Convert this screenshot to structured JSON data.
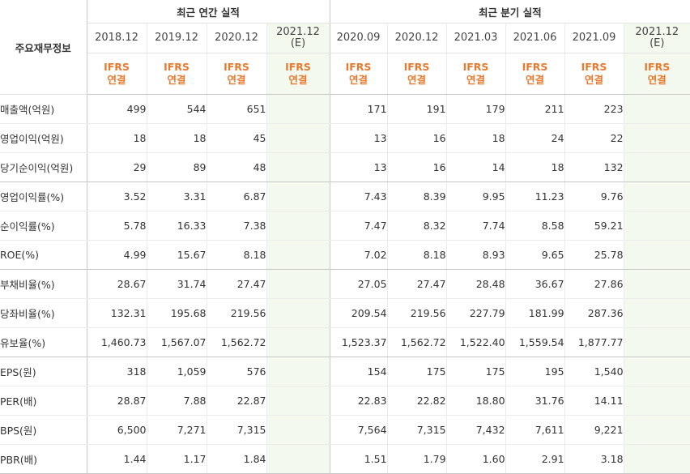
{
  "header": {
    "corner_label": "주요재무정보",
    "annual_group": "최근 연간 실적",
    "quarterly_group": "최근 분기 실적",
    "annual_periods": [
      {
        "date": "2018.12",
        "estimate": "",
        "acct1": "IFRS",
        "acct2": "연결"
      },
      {
        "date": "2019.12",
        "estimate": "",
        "acct1": "IFRS",
        "acct2": "연결"
      },
      {
        "date": "2020.12",
        "estimate": "",
        "acct1": "IFRS",
        "acct2": "연결"
      },
      {
        "date": "2021.12",
        "estimate": "(E)",
        "acct1": "IFRS",
        "acct2": "연결"
      }
    ],
    "quarterly_periods": [
      {
        "date": "2020.09",
        "estimate": "",
        "acct1": "IFRS",
        "acct2": "연결"
      },
      {
        "date": "2020.12",
        "estimate": "",
        "acct1": "IFRS",
        "acct2": "연결"
      },
      {
        "date": "2021.03",
        "estimate": "",
        "acct1": "IFRS",
        "acct2": "연결"
      },
      {
        "date": "2021.06",
        "estimate": "",
        "acct1": "IFRS",
        "acct2": "연결"
      },
      {
        "date": "2021.09",
        "estimate": "",
        "acct1": "IFRS",
        "acct2": "연결"
      },
      {
        "date": "2021.12",
        "estimate": "(E)",
        "acct1": "IFRS",
        "acct2": "연결"
      }
    ]
  },
  "rows": [
    {
      "label": "매출액(억원)",
      "annual": [
        "499",
        "544",
        "651",
        ""
      ],
      "quarterly": [
        "171",
        "191",
        "179",
        "211",
        "223",
        ""
      ]
    },
    {
      "label": "영업이익(억원)",
      "annual": [
        "18",
        "18",
        "45",
        ""
      ],
      "quarterly": [
        "13",
        "16",
        "18",
        "24",
        "22",
        ""
      ]
    },
    {
      "label": "당기순이익(억원)",
      "annual": [
        "29",
        "89",
        "48",
        ""
      ],
      "quarterly": [
        "13",
        "16",
        "14",
        "18",
        "132",
        ""
      ]
    },
    {
      "label": "영업이익률(%)",
      "annual": [
        "3.52",
        "3.31",
        "6.87",
        ""
      ],
      "quarterly": [
        "7.43",
        "8.39",
        "9.95",
        "11.23",
        "9.76",
        ""
      ]
    },
    {
      "label": "순이익률(%)",
      "annual": [
        "5.78",
        "16.33",
        "7.38",
        ""
      ],
      "quarterly": [
        "7.47",
        "8.32",
        "7.74",
        "8.58",
        "59.21",
        ""
      ]
    },
    {
      "label": "ROE(%)",
      "annual": [
        "4.99",
        "15.67",
        "8.18",
        ""
      ],
      "quarterly": [
        "7.02",
        "8.18",
        "8.93",
        "9.65",
        "25.78",
        ""
      ]
    },
    {
      "label": "부채비율(%)",
      "annual": [
        "28.67",
        "31.74",
        "27.47",
        ""
      ],
      "quarterly": [
        "27.05",
        "27.47",
        "28.48",
        "36.67",
        "27.86",
        ""
      ]
    },
    {
      "label": "당좌비율(%)",
      "annual": [
        "132.31",
        "195.68",
        "219.56",
        ""
      ],
      "quarterly": [
        "209.54",
        "219.56",
        "227.79",
        "181.99",
        "287.36",
        ""
      ]
    },
    {
      "label": "유보율(%)",
      "annual": [
        "1,460.73",
        "1,567.07",
        "1,562.72",
        ""
      ],
      "quarterly": [
        "1,523.37",
        "1,562.72",
        "1,522.40",
        "1,559.54",
        "1,877.77",
        ""
      ]
    },
    {
      "label": "EPS(원)",
      "annual": [
        "318",
        "1,059",
        "576",
        ""
      ],
      "quarterly": [
        "154",
        "175",
        "175",
        "195",
        "1,540",
        ""
      ]
    },
    {
      "label": "PER(배)",
      "annual": [
        "28.87",
        "7.88",
        "22.87",
        ""
      ],
      "quarterly": [
        "22.83",
        "22.82",
        "18.80",
        "31.76",
        "14.11",
        ""
      ]
    },
    {
      "label": "BPS(원)",
      "annual": [
        "6,500",
        "7,271",
        "7,315",
        ""
      ],
      "quarterly": [
        "7,564",
        "7,315",
        "7,432",
        "7,611",
        "9,221",
        ""
      ]
    },
    {
      "label": "PBR(배)",
      "annual": [
        "1.44",
        "1.17",
        "1.84",
        ""
      ],
      "quarterly": [
        "1.51",
        "1.79",
        "1.60",
        "2.91",
        "3.18",
        ""
      ]
    }
  ]
}
